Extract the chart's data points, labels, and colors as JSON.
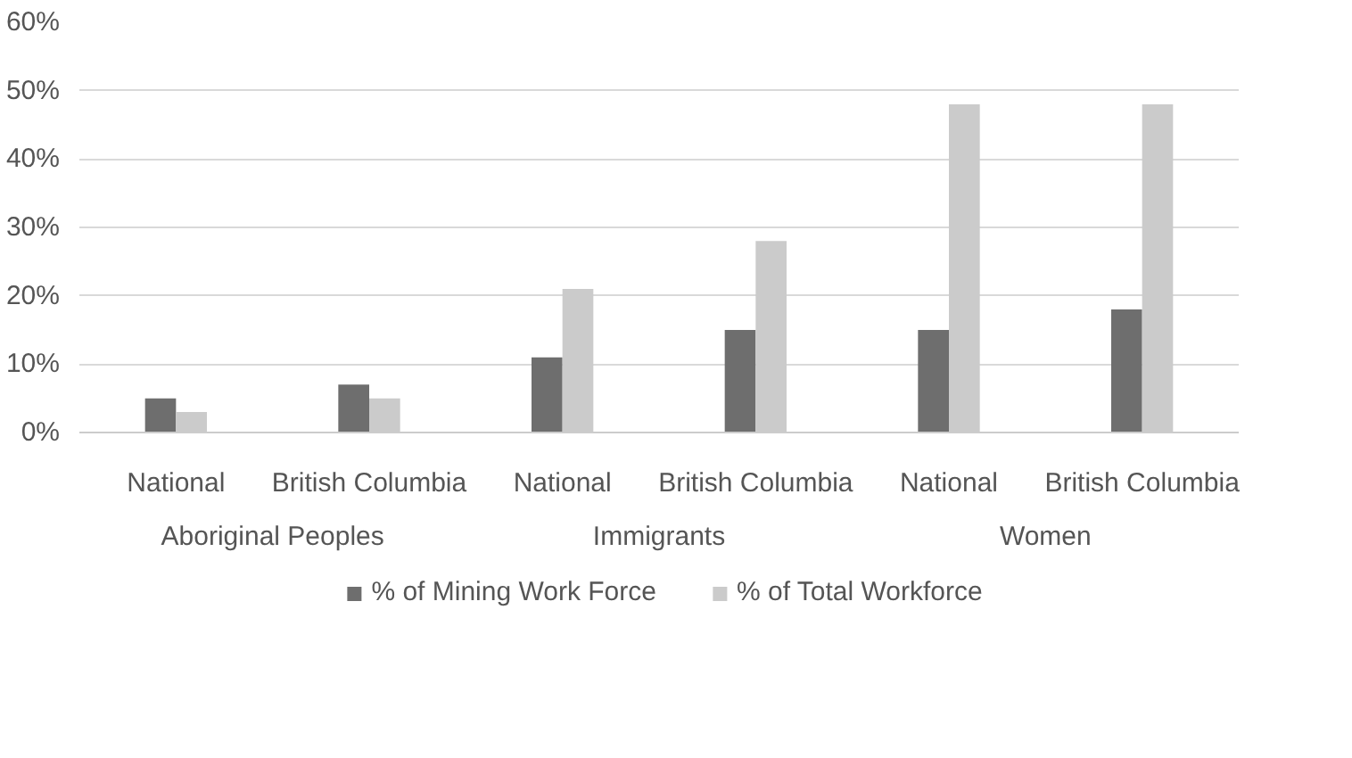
{
  "chart_data": {
    "type": "bar",
    "categories": [
      "National",
      "British Columbia",
      "National",
      "British Columbia",
      "National",
      "British Columbia"
    ],
    "series": [
      {
        "name": "% of Mining Work Force",
        "color": "#6e6e6e",
        "values": [
          5,
          7,
          11,
          15,
          15,
          18
        ]
      },
      {
        "name": "% of Total Workforce",
        "color": "#cbcbcb",
        "values": [
          3,
          5,
          21,
          28,
          48,
          48
        ]
      }
    ],
    "annotations": [
      "Aboriginal Peoples",
      "Immigrants",
      "Women"
    ],
    "ylim": [
      0,
      60
    ],
    "yticks": [
      {
        "value": 0,
        "label": "0%"
      },
      {
        "value": 10,
        "label": "10%"
      },
      {
        "value": 20,
        "label": "20%"
      },
      {
        "value": 30,
        "label": "30%"
      },
      {
        "value": 40,
        "label": "40%"
      },
      {
        "value": 50,
        "label": "50%"
      },
      {
        "value": 60,
        "label": "60%"
      }
    ],
    "grid": "y",
    "legend": "bottom"
  }
}
